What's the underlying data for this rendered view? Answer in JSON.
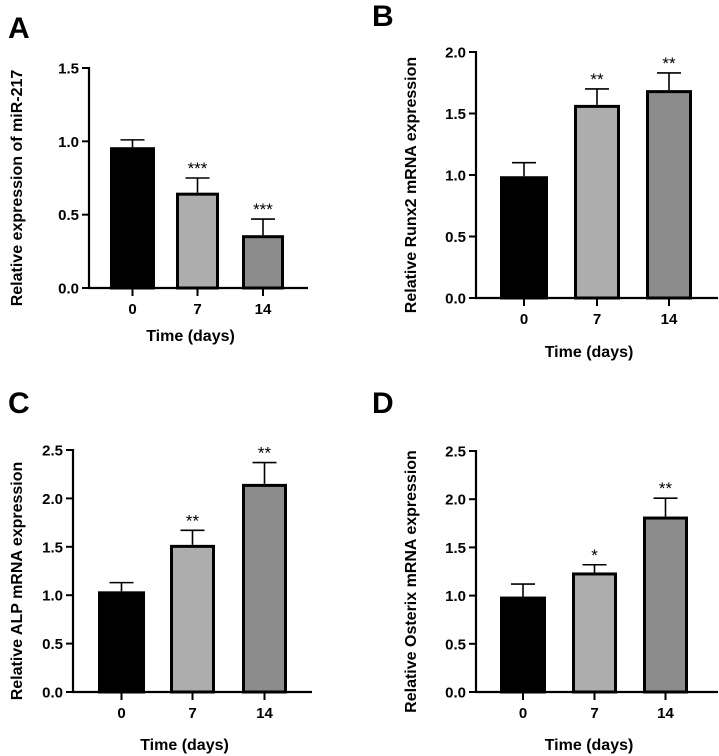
{
  "figure": {
    "bar_colors": [
      "#000000",
      "#adadad",
      "#8c8c8c"
    ],
    "outline_color": "#000000"
  },
  "chart_data": [
    {
      "panel": "A",
      "type": "bar",
      "title": "",
      "xlabel": "Time (days)",
      "ylabel": "Relative expression of miR-217",
      "categories": [
        "0",
        "7",
        "14"
      ],
      "values": [
        0.96,
        0.65,
        0.36
      ],
      "error_upper": [
        1.01,
        0.75,
        0.47
      ],
      "significance": [
        "",
        "***",
        "***"
      ],
      "ylim": [
        0,
        1.5
      ],
      "yticks": [
        0.0,
        0.5,
        1.0,
        1.5
      ],
      "ytick_labels": [
        "0.0",
        "0.5",
        "1.0",
        "1.5"
      ],
      "grid": false,
      "legend": "none"
    },
    {
      "panel": "B",
      "type": "bar",
      "title": "",
      "xlabel": "Time (days)",
      "ylabel": "Relative Runx2 mRNA expression",
      "categories": [
        "0",
        "7",
        "14"
      ],
      "values": [
        0.99,
        1.57,
        1.69
      ],
      "error_upper": [
        1.1,
        1.7,
        1.83
      ],
      "significance": [
        "",
        "**",
        "**"
      ],
      "ylim": [
        0,
        2.0
      ],
      "yticks": [
        0.0,
        0.5,
        1.0,
        1.5,
        2.0
      ],
      "ytick_labels": [
        "0.0",
        "0.5",
        "1.0",
        "1.5",
        "2.0"
      ],
      "grid": false,
      "legend": "none"
    },
    {
      "panel": "C",
      "type": "bar",
      "title": "",
      "xlabel": "Time (days)",
      "ylabel": "Relative ALP mRNA expression",
      "categories": [
        "0",
        "7",
        "14"
      ],
      "values": [
        1.04,
        1.52,
        2.15
      ],
      "error_upper": [
        1.13,
        1.67,
        2.37
      ],
      "significance": [
        "",
        "**",
        "**"
      ],
      "ylim": [
        0,
        2.5
      ],
      "yticks": [
        0.0,
        0.5,
        1.0,
        1.5,
        2.0,
        2.5
      ],
      "ytick_labels": [
        "0.0",
        "0.5",
        "1.0",
        "1.5",
        "2.0",
        "2.5"
      ],
      "grid": false,
      "legend": "none"
    },
    {
      "panel": "D",
      "type": "bar",
      "title": "",
      "xlabel": "Time (days)",
      "ylabel": "Relative Osterix  mRNA expression",
      "categories": [
        "0",
        "7",
        "14"
      ],
      "values": [
        0.99,
        1.24,
        1.82
      ],
      "error_upper": [
        1.12,
        1.32,
        2.01
      ],
      "significance": [
        "",
        "*",
        "**"
      ],
      "ylim": [
        0,
        2.5
      ],
      "yticks": [
        0.0,
        0.5,
        1.0,
        1.5,
        2.0,
        2.5
      ],
      "ytick_labels": [
        "0.0",
        "0.5",
        "1.0",
        "1.5",
        "2.0",
        "2.5"
      ],
      "grid": false,
      "legend": "none"
    }
  ]
}
